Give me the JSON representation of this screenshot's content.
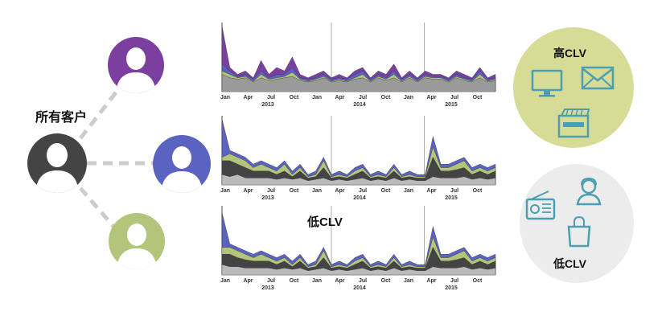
{
  "labels": {
    "all_customers": "所有客户",
    "low_clv_middle": "低CLV",
    "high_clv": "高CLV",
    "low_clv": "低CLV"
  },
  "colors": {
    "purple": "#7b3fa0",
    "blue": "#5b63c0",
    "green": "#b3c57a",
    "dark": "#444444",
    "high_bubble": "#d6dc96",
    "low_bubble": "#ececec",
    "icon_teal": "#4a9fb0",
    "connector": "#cccccc"
  },
  "icons": {
    "high": [
      "monitor-icon",
      "mail-icon",
      "ticket-icon"
    ],
    "low": [
      "radio-icon",
      "support-agent-icon",
      "shopping-bag-icon"
    ]
  },
  "chart_data": [
    {
      "type": "area",
      "x_ticks": [
        "Jan",
        "Apr",
        "Jul",
        "Oct",
        "Jan",
        "Apr",
        "Jul",
        "Oct",
        "Jan",
        "Apr",
        "Jul",
        "Oct"
      ],
      "years": [
        "2013",
        "2014",
        "2015"
      ],
      "series": [
        {
          "color": "#7b3fa0",
          "values": [
            0.95,
            0.35,
            0.25,
            0.3,
            0.2,
            0.45,
            0.25,
            0.35,
            0.3,
            0.5,
            0.25,
            0.2,
            0.25,
            0.3,
            0.2,
            0.25,
            0.2,
            0.3,
            0.35,
            0.2,
            0.3,
            0.25,
            0.4,
            0.2,
            0.3,
            0.2,
            0.3,
            0.25,
            0.25,
            0.2,
            0.3,
            0.25,
            0.2,
            0.35,
            0.2,
            0.25
          ]
        },
        {
          "color": "#5b63c0",
          "values": [
            0.4,
            0.3,
            0.22,
            0.25,
            0.18,
            0.3,
            0.2,
            0.25,
            0.25,
            0.35,
            0.2,
            0.18,
            0.2,
            0.25,
            0.18,
            0.2,
            0.18,
            0.25,
            0.3,
            0.18,
            0.25,
            0.2,
            0.3,
            0.18,
            0.25,
            0.18,
            0.25,
            0.22,
            0.22,
            0.18,
            0.25,
            0.2,
            0.18,
            0.3,
            0.18,
            0.2
          ]
        },
        {
          "color": "#b3c57a",
          "values": [
            0.3,
            0.25,
            0.2,
            0.22,
            0.15,
            0.25,
            0.18,
            0.2,
            0.22,
            0.28,
            0.18,
            0.15,
            0.18,
            0.22,
            0.15,
            0.18,
            0.15,
            0.2,
            0.25,
            0.15,
            0.22,
            0.18,
            0.25,
            0.15,
            0.22,
            0.15,
            0.22,
            0.2,
            0.2,
            0.15,
            0.22,
            0.18,
            0.15,
            0.25,
            0.15,
            0.18
          ]
        },
        {
          "color": "#9a9a9a",
          "values": [
            0.25,
            0.2,
            0.18,
            0.2,
            0.14,
            0.2,
            0.16,
            0.18,
            0.2,
            0.22,
            0.16,
            0.14,
            0.16,
            0.2,
            0.14,
            0.16,
            0.14,
            0.18,
            0.2,
            0.14,
            0.2,
            0.16,
            0.2,
            0.14,
            0.2,
            0.14,
            0.2,
            0.18,
            0.18,
            0.14,
            0.2,
            0.16,
            0.14,
            0.2,
            0.14,
            0.16
          ]
        }
      ]
    },
    {
      "type": "area",
      "x_ticks": [
        "Jan",
        "Apr",
        "Jul",
        "Oct",
        "Jan",
        "Apr",
        "Jul",
        "Oct",
        "Jan",
        "Apr",
        "Jul",
        "Oct"
      ],
      "years": [
        "2013",
        "2014",
        "2015"
      ],
      "series": [
        {
          "color": "#5b63c0",
          "values": [
            0.95,
            0.5,
            0.45,
            0.4,
            0.3,
            0.35,
            0.3,
            0.25,
            0.35,
            0.2,
            0.3,
            0.15,
            0.2,
            0.4,
            0.15,
            0.2,
            0.15,
            0.25,
            0.3,
            0.15,
            0.2,
            0.15,
            0.3,
            0.15,
            0.2,
            0.15,
            0.15,
            0.7,
            0.3,
            0.3,
            0.35,
            0.4,
            0.25,
            0.3,
            0.25,
            0.3
          ]
        },
        {
          "color": "#b3c57a",
          "values": [
            0.4,
            0.45,
            0.4,
            0.35,
            0.25,
            0.3,
            0.25,
            0.2,
            0.3,
            0.15,
            0.25,
            0.12,
            0.15,
            0.35,
            0.12,
            0.15,
            0.12,
            0.2,
            0.25,
            0.12,
            0.15,
            0.12,
            0.25,
            0.12,
            0.15,
            0.12,
            0.12,
            0.55,
            0.25,
            0.25,
            0.3,
            0.35,
            0.2,
            0.25,
            0.2,
            0.25
          ]
        },
        {
          "color": "#444444",
          "values": [
            0.35,
            0.35,
            0.3,
            0.25,
            0.2,
            0.2,
            0.2,
            0.15,
            0.2,
            0.12,
            0.2,
            0.1,
            0.12,
            0.25,
            0.1,
            0.12,
            0.1,
            0.15,
            0.2,
            0.1,
            0.12,
            0.1,
            0.2,
            0.1,
            0.12,
            0.1,
            0.1,
            0.4,
            0.2,
            0.2,
            0.22,
            0.25,
            0.15,
            0.2,
            0.15,
            0.2
          ]
        },
        {
          "color": "#bbbbbb",
          "values": [
            0.15,
            0.12,
            0.15,
            0.1,
            0.1,
            0.1,
            0.1,
            0.08,
            0.1,
            0.08,
            0.1,
            0.06,
            0.08,
            0.1,
            0.06,
            0.08,
            0.06,
            0.08,
            0.1,
            0.06,
            0.08,
            0.06,
            0.1,
            0.06,
            0.08,
            0.06,
            0.06,
            0.12,
            0.1,
            0.1,
            0.1,
            0.12,
            0.08,
            0.1,
            0.08,
            0.1
          ]
        }
      ]
    },
    {
      "type": "area",
      "x_ticks": [
        "Jan",
        "Apr",
        "Jul",
        "Oct",
        "Jan",
        "Apr",
        "Jul",
        "Oct",
        "Jan",
        "Apr",
        "Jul",
        "Oct"
      ],
      "years": [
        "2013",
        "2014",
        "2015"
      ],
      "series": [
        {
          "color": "#5b63c0",
          "values": [
            0.9,
            0.45,
            0.4,
            0.35,
            0.3,
            0.35,
            0.3,
            0.25,
            0.3,
            0.2,
            0.3,
            0.15,
            0.2,
            0.4,
            0.15,
            0.2,
            0.15,
            0.25,
            0.3,
            0.15,
            0.2,
            0.15,
            0.3,
            0.15,
            0.2,
            0.15,
            0.15,
            0.7,
            0.3,
            0.3,
            0.35,
            0.4,
            0.25,
            0.3,
            0.25,
            0.3
          ]
        },
        {
          "color": "#b3c57a",
          "values": [
            0.4,
            0.4,
            0.35,
            0.3,
            0.25,
            0.3,
            0.25,
            0.2,
            0.25,
            0.15,
            0.25,
            0.12,
            0.15,
            0.35,
            0.12,
            0.15,
            0.12,
            0.2,
            0.25,
            0.12,
            0.15,
            0.12,
            0.25,
            0.12,
            0.15,
            0.12,
            0.12,
            0.55,
            0.25,
            0.25,
            0.3,
            0.35,
            0.2,
            0.25,
            0.2,
            0.25
          ]
        },
        {
          "color": "#444444",
          "values": [
            0.3,
            0.3,
            0.25,
            0.22,
            0.2,
            0.2,
            0.2,
            0.15,
            0.2,
            0.12,
            0.2,
            0.1,
            0.12,
            0.25,
            0.1,
            0.12,
            0.1,
            0.15,
            0.2,
            0.1,
            0.12,
            0.1,
            0.2,
            0.1,
            0.12,
            0.1,
            0.1,
            0.4,
            0.2,
            0.2,
            0.22,
            0.25,
            0.15,
            0.2,
            0.15,
            0.2
          ]
        },
        {
          "color": "#bbbbbb",
          "values": [
            0.15,
            0.12,
            0.12,
            0.1,
            0.1,
            0.1,
            0.1,
            0.08,
            0.1,
            0.08,
            0.1,
            0.06,
            0.08,
            0.1,
            0.06,
            0.08,
            0.06,
            0.08,
            0.1,
            0.06,
            0.08,
            0.06,
            0.1,
            0.06,
            0.08,
            0.06,
            0.06,
            0.12,
            0.1,
            0.1,
            0.1,
            0.12,
            0.08,
            0.1,
            0.08,
            0.1
          ]
        }
      ]
    }
  ]
}
